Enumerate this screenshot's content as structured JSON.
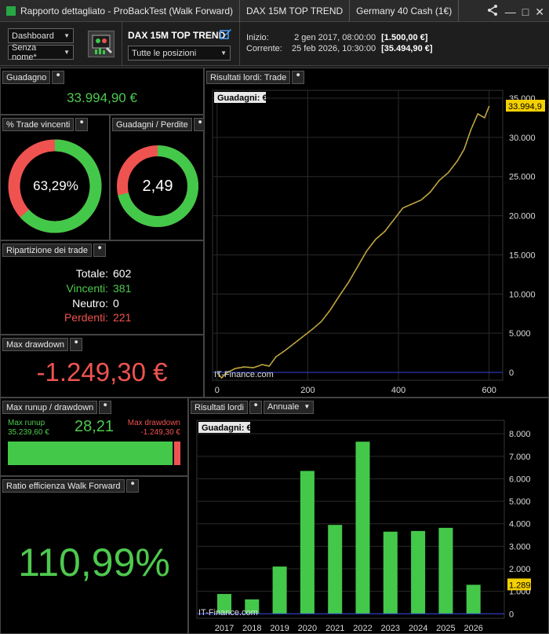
{
  "titlebar": {
    "title": "Rapporto dettagliato - ProBackTest (Walk Forward)",
    "strategy": "DAX 15M TOP TREND",
    "instrument": "Germany 40 Cash (1€)"
  },
  "header": {
    "view_select": "Dashboard",
    "name_select": "Senza nome*",
    "strategy_name": "DAX 15M TOP TREND",
    "position_select": "Tutte le posizioni",
    "start_label": "Inizio:",
    "start_date": "2 gen 2017, 08:00:00",
    "start_value": "[1.500,00 €]",
    "current_label": "Corrente:",
    "current_date": "25 feb 2026, 10:30:00",
    "current_value": "[35.494,90 €]"
  },
  "gain": {
    "title": "Guadagno",
    "value": "33.994,90 €"
  },
  "win_pct": {
    "title": "% Trade vincenti",
    "value": "63,29%",
    "fraction": 0.6329,
    "color_win": "#44c84a",
    "color_loss": "#ef5350"
  },
  "gain_loss": {
    "title": "Guadagni / Perdite",
    "value": "2,49",
    "fraction": 0.7134
  },
  "breakdown": {
    "title": "Ripartizione dei trade",
    "total_label": "Totale:",
    "total": "602",
    "win_label": "Vincenti:",
    "win": "381",
    "neutral_label": "Neutro:",
    "neutral": "0",
    "loss_label": "Perdenti:",
    "loss": "221"
  },
  "max_drawdown": {
    "title": "Max drawdown",
    "value": "-1.249,30 €"
  },
  "runup": {
    "title": "Max runup / drawdown",
    "runup_label": "Max runup",
    "runup_value": "35.239,60 €",
    "ratio": "28,21",
    "dd_label": "Max drawdown",
    "dd_value": "-1.249,30 €",
    "runup_fraction": 0.9658
  },
  "wf": {
    "title": "Ratio efficienza Walk Forward",
    "value": "110,99%"
  },
  "line_chart_panel": {
    "title": "Risultati lordi: Trade",
    "chart_label": "Guadagni: €",
    "watermark": "IT-Finance.com",
    "last_label": "33.994,9"
  },
  "bar_chart_panel": {
    "title": "Risultati lordi",
    "period_select": "Annuale",
    "chart_label": "Guadagni: €",
    "watermark": "IT-Finance.com",
    "last_label": "1.289"
  },
  "chart_data": [
    {
      "type": "line",
      "title": "Guadagni: €",
      "x": [
        0,
        10,
        20,
        40,
        60,
        80,
        100,
        115,
        130,
        150,
        170,
        190,
        210,
        230,
        250,
        270,
        290,
        310,
        330,
        350,
        370,
        390,
        410,
        430,
        450,
        470,
        490,
        510,
        530,
        545,
        560,
        575,
        590,
        600
      ],
      "y": [
        0,
        -700,
        -100,
        500,
        700,
        600,
        1000,
        800,
        2000,
        2800,
        3700,
        4600,
        5500,
        6500,
        8000,
        9800,
        11500,
        13500,
        15500,
        17000,
        18000,
        19500,
        21000,
        21500,
        22000,
        23000,
        24500,
        25500,
        27000,
        28500,
        31000,
        33000,
        32500,
        33994.9
      ],
      "xlim": [
        -10,
        630
      ],
      "ylim": [
        -1000,
        36000
      ],
      "x_ticks": [
        0,
        200,
        400,
        600
      ],
      "y_ticks": [
        0,
        5000,
        10000,
        15000,
        20000,
        25000,
        30000,
        35000
      ],
      "y_tick_labels": [
        "0",
        "5.000",
        "10.000",
        "15.000",
        "20.000",
        "25.000",
        "30.000",
        "35.000"
      ]
    },
    {
      "type": "bar",
      "title": "Guadagni: €",
      "categories": [
        "2017",
        "2018",
        "2019",
        "2020",
        "2021",
        "2022",
        "2023",
        "2024",
        "2025",
        "2026"
      ],
      "values": [
        880,
        640,
        2100,
        6350,
        3950,
        7650,
        3650,
        3680,
        3820,
        1289
      ],
      "ylim": [
        -200,
        8600
      ],
      "y_ticks": [
        0,
        1000,
        2000,
        3000,
        4000,
        5000,
        6000,
        7000,
        8000
      ],
      "y_tick_labels": [
        "0",
        "1.000",
        "2.000",
        "3.000",
        "4.000",
        "5.000",
        "6.000",
        "7.000",
        "8.000"
      ]
    }
  ]
}
